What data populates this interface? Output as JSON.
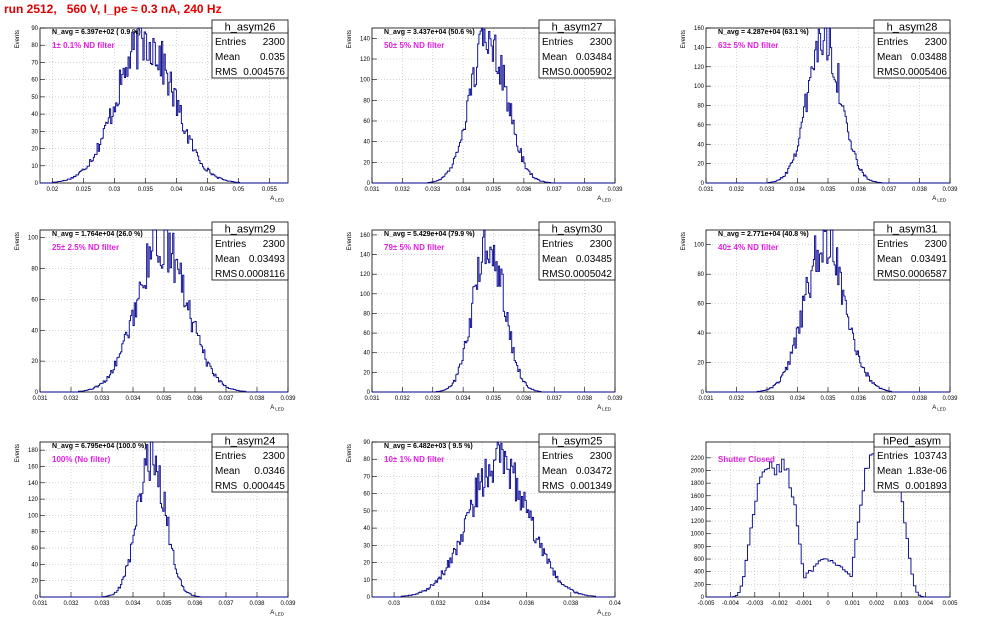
{
  "page": {
    "title": "run 2512,   560 V, I_pe ≈ 0.3 nA, 240 Hz"
  },
  "chart_data": [
    {
      "type": "bar",
      "name": "h_asym26",
      "entries": "2300",
      "mean": "0.035",
      "rms": "0.004576",
      "navg": "N_avg = 6.397e+02 ( 0.9 %)",
      "filter": "1± 0.1% ND filter",
      "xlim": [
        0.018,
        0.058
      ],
      "ylim": [
        0,
        90
      ],
      "xticks": [
        0.02,
        0.025,
        0.03,
        0.035,
        0.04,
        0.045,
        0.05,
        0.055
      ],
      "xticklabels": [
        "0.02",
        "0.025",
        "0.03",
        "0.035",
        "0.04",
        "0.045",
        "0.05",
        "0.055"
      ],
      "yticks": [
        0,
        10,
        20,
        30,
        40,
        50,
        60,
        70,
        80,
        90
      ],
      "yticklabels": [
        "0",
        "10",
        "20",
        "30",
        "40",
        "50",
        "60",
        "70",
        "80",
        "90"
      ],
      "xlabel": "A",
      "xlabel_sub": "LED",
      "ylabel": "Events",
      "mu": 0.035,
      "sigma": 0.0046,
      "peak": 83,
      "nbins": 200
    },
    {
      "type": "bar",
      "name": "h_asym27",
      "entries": "2300",
      "mean": "0.03484",
      "rms": "0.0005902",
      "navg": "N_avg = 3.437e+04 (50.6 %)",
      "filter": "50± 5% ND filter",
      "xlim": [
        0.031,
        0.039
      ],
      "ylim": [
        0,
        150
      ],
      "xticks": [
        0.031,
        0.032,
        0.033,
        0.034,
        0.035,
        0.036,
        0.037,
        0.038,
        0.039
      ],
      "xticklabels": [
        "0.031",
        "0.032",
        "0.033",
        "0.034",
        "0.035",
        "0.036",
        "0.037",
        "0.038",
        "0.039"
      ],
      "yticks": [
        0,
        20,
        40,
        60,
        80,
        100,
        120,
        140
      ],
      "yticklabels": [
        "0",
        "20",
        "40",
        "60",
        "80",
        "100",
        "120",
        "140"
      ],
      "xlabel": "A",
      "xlabel_sub": "LED",
      "ylabel": "Events",
      "mu": 0.03484,
      "sigma": 0.00059,
      "peak": 143,
      "nbins": 200
    },
    {
      "type": "bar",
      "name": "h_asym28",
      "entries": "2300",
      "mean": "0.03488",
      "rms": "0.0005406",
      "navg": "N_avg = 4.287e+04 (63.1 %)",
      "filter": "63± 5% ND filter",
      "xlim": [
        0.031,
        0.039
      ],
      "ylim": [
        0,
        160
      ],
      "xticks": [
        0.031,
        0.032,
        0.033,
        0.034,
        0.035,
        0.036,
        0.037,
        0.038,
        0.039
      ],
      "xticklabels": [
        "0.031",
        "0.032",
        "0.033",
        "0.034",
        "0.035",
        "0.036",
        "0.037",
        "0.038",
        "0.039"
      ],
      "yticks": [
        0,
        20,
        40,
        60,
        80,
        100,
        120,
        140,
        160
      ],
      "yticklabels": [
        "0",
        "20",
        "40",
        "60",
        "80",
        "100",
        "120",
        "140",
        "160"
      ],
      "xlabel": "A",
      "xlabel_sub": "LED",
      "ylabel": "Events",
      "mu": 0.03488,
      "sigma": 0.00054,
      "peak": 152,
      "nbins": 200
    },
    {
      "type": "bar",
      "name": "h_asym29",
      "entries": "2300",
      "mean": "0.03493",
      "rms": "0.0008116",
      "navg": "N_avg = 1.764e+04 (26.0 %)",
      "filter": "25± 2.5% ND filter",
      "xlim": [
        0.031,
        0.039
      ],
      "ylim": [
        0,
        105
      ],
      "xticks": [
        0.031,
        0.032,
        0.033,
        0.034,
        0.035,
        0.036,
        0.037,
        0.038,
        0.039
      ],
      "xticklabels": [
        "0.031",
        "0.032",
        "0.033",
        "0.034",
        "0.035",
        "0.036",
        "0.037",
        "0.038",
        "0.039"
      ],
      "yticks": [
        0,
        20,
        40,
        60,
        80,
        100
      ],
      "yticklabels": [
        "0",
        "20",
        "40",
        "60",
        "80",
        "100"
      ],
      "xlabel": "A",
      "xlabel_sub": "LED",
      "ylabel": "Events",
      "mu": 0.03493,
      "sigma": 0.00081,
      "peak": 97,
      "nbins": 200
    },
    {
      "type": "bar",
      "name": "h_asym30",
      "entries": "2300",
      "mean": "0.03485",
      "rms": "0.0005042",
      "navg": "N_avg = 5.429e+04 (79.9 %)",
      "filter": "79± 5% ND filter",
      "xlim": [
        0.031,
        0.039
      ],
      "ylim": [
        0,
        165
      ],
      "xticks": [
        0.031,
        0.032,
        0.033,
        0.034,
        0.035,
        0.036,
        0.037,
        0.038,
        0.039
      ],
      "xticklabels": [
        "0.031",
        "0.032",
        "0.033",
        "0.034",
        "0.035",
        "0.036",
        "0.037",
        "0.038",
        "0.039"
      ],
      "yticks": [
        0,
        20,
        40,
        60,
        80,
        100,
        120,
        140,
        160
      ],
      "yticklabels": [
        "0",
        "20",
        "40",
        "60",
        "80",
        "100",
        "120",
        "140",
        "160"
      ],
      "xlabel": "A",
      "xlabel_sub": "LED",
      "ylabel": "Events",
      "mu": 0.03485,
      "sigma": 0.0005,
      "peak": 155,
      "nbins": 200
    },
    {
      "type": "bar",
      "name": "h_asym31",
      "entries": "2300",
      "mean": "0.03491",
      "rms": "0.0006587",
      "navg": "N_avg = 2.771e+04 (40.8 %)",
      "filter": "40± 4% ND filter",
      "xlim": [
        0.031,
        0.039
      ],
      "ylim": [
        0,
        110
      ],
      "xticks": [
        0.031,
        0.032,
        0.033,
        0.034,
        0.035,
        0.036,
        0.037,
        0.038,
        0.039
      ],
      "xticklabels": [
        "0.031",
        "0.032",
        "0.033",
        "0.034",
        "0.035",
        "0.036",
        "0.037",
        "0.038",
        "0.039"
      ],
      "yticks": [
        0,
        20,
        40,
        60,
        80,
        100
      ],
      "yticklabels": [
        "0",
        "20",
        "40",
        "60",
        "80",
        "100"
      ],
      "xlabel": "A",
      "xlabel_sub": "LED",
      "ylabel": "Events",
      "mu": 0.03491,
      "sigma": 0.00066,
      "peak": 102,
      "nbins": 200
    },
    {
      "type": "bar",
      "name": "h_asym24",
      "entries": "2300",
      "mean": "0.0346",
      "rms": "0.000445",
      "navg": "N_avg = 6.795e+04 (100.0 %)",
      "filter": "100% (No filter)",
      "xlim": [
        0.031,
        0.039
      ],
      "ylim": [
        0,
        190
      ],
      "xticks": [
        0.031,
        0.032,
        0.033,
        0.034,
        0.035,
        0.036,
        0.037,
        0.038,
        0.039
      ],
      "xticklabels": [
        "0.031",
        "0.032",
        "0.033",
        "0.034",
        "0.035",
        "0.036",
        "0.037",
        "0.038",
        "0.039"
      ],
      "yticks": [
        0,
        20,
        40,
        60,
        80,
        100,
        120,
        140,
        160,
        180
      ],
      "yticklabels": [
        "0",
        "20",
        "40",
        "60",
        "80",
        "100",
        "120",
        "140",
        "160",
        "180"
      ],
      "xlabel": "A",
      "xlabel_sub": "LED",
      "ylabel": "Events",
      "mu": 0.0346,
      "sigma": 0.000445,
      "peak": 175,
      "nbins": 200
    },
    {
      "type": "bar",
      "name": "h_asym25",
      "entries": "2300",
      "mean": "0.03472",
      "rms": "0.001349",
      "navg": "N_avg = 6.482e+03 ( 9.5 %)",
      "filter": "10± 1% ND filter",
      "xlim": [
        0.029,
        0.04
      ],
      "ylim": [
        0,
        90
      ],
      "xticks": [
        0.03,
        0.032,
        0.034,
        0.036,
        0.038,
        0.04
      ],
      "xticklabels": [
        "0.03",
        "0.032",
        "0.034",
        "0.036",
        "0.038",
        "0.04"
      ],
      "yticks": [
        0,
        10,
        20,
        30,
        40,
        50,
        60,
        70,
        80,
        90
      ],
      "yticklabels": [
        "0",
        "10",
        "20",
        "30",
        "40",
        "50",
        "60",
        "70",
        "80",
        "90"
      ],
      "xlabel": "A",
      "xlabel_sub": "LED",
      "ylabel": "Events",
      "mu": 0.03472,
      "sigma": 0.00135,
      "peak": 78,
      "nbins": 200
    },
    {
      "type": "bar",
      "name": "hPed_asym",
      "entries": "103743",
      "mean": "1.83e-06",
      "rms": "0.001893",
      "navg": "",
      "filter": "Shutter Closed",
      "bimodal": true,
      "xlim": [
        -0.005,
        0.005
      ],
      "ylim": [
        0,
        2450
      ],
      "xticks": [
        -0.005,
        -0.004,
        -0.003,
        -0.002,
        -0.001,
        0,
        0.001,
        0.002,
        0.003,
        0.004,
        0.005
      ],
      "xticklabels": [
        "-0.005",
        "-0.004",
        "-0.003",
        "-0.002",
        "-0.001",
        "0",
        "0.001",
        "0.002",
        "0.003",
        "0.004",
        "0.005"
      ],
      "yticks": [
        0,
        200,
        400,
        600,
        800,
        1000,
        1200,
        1400,
        1600,
        1800,
        2000,
        2200
      ],
      "yticklabels": [
        "0",
        "200",
        "400",
        "600",
        "800",
        "1000",
        "1200",
        "1400",
        "1600",
        "1800",
        "2000",
        "2200"
      ],
      "xlabel": "",
      "xlabel_sub": "",
      "ylabel": "",
      "mu": 0,
      "sigma": 0.0019,
      "peak": 2350,
      "nbins": 100
    }
  ]
}
